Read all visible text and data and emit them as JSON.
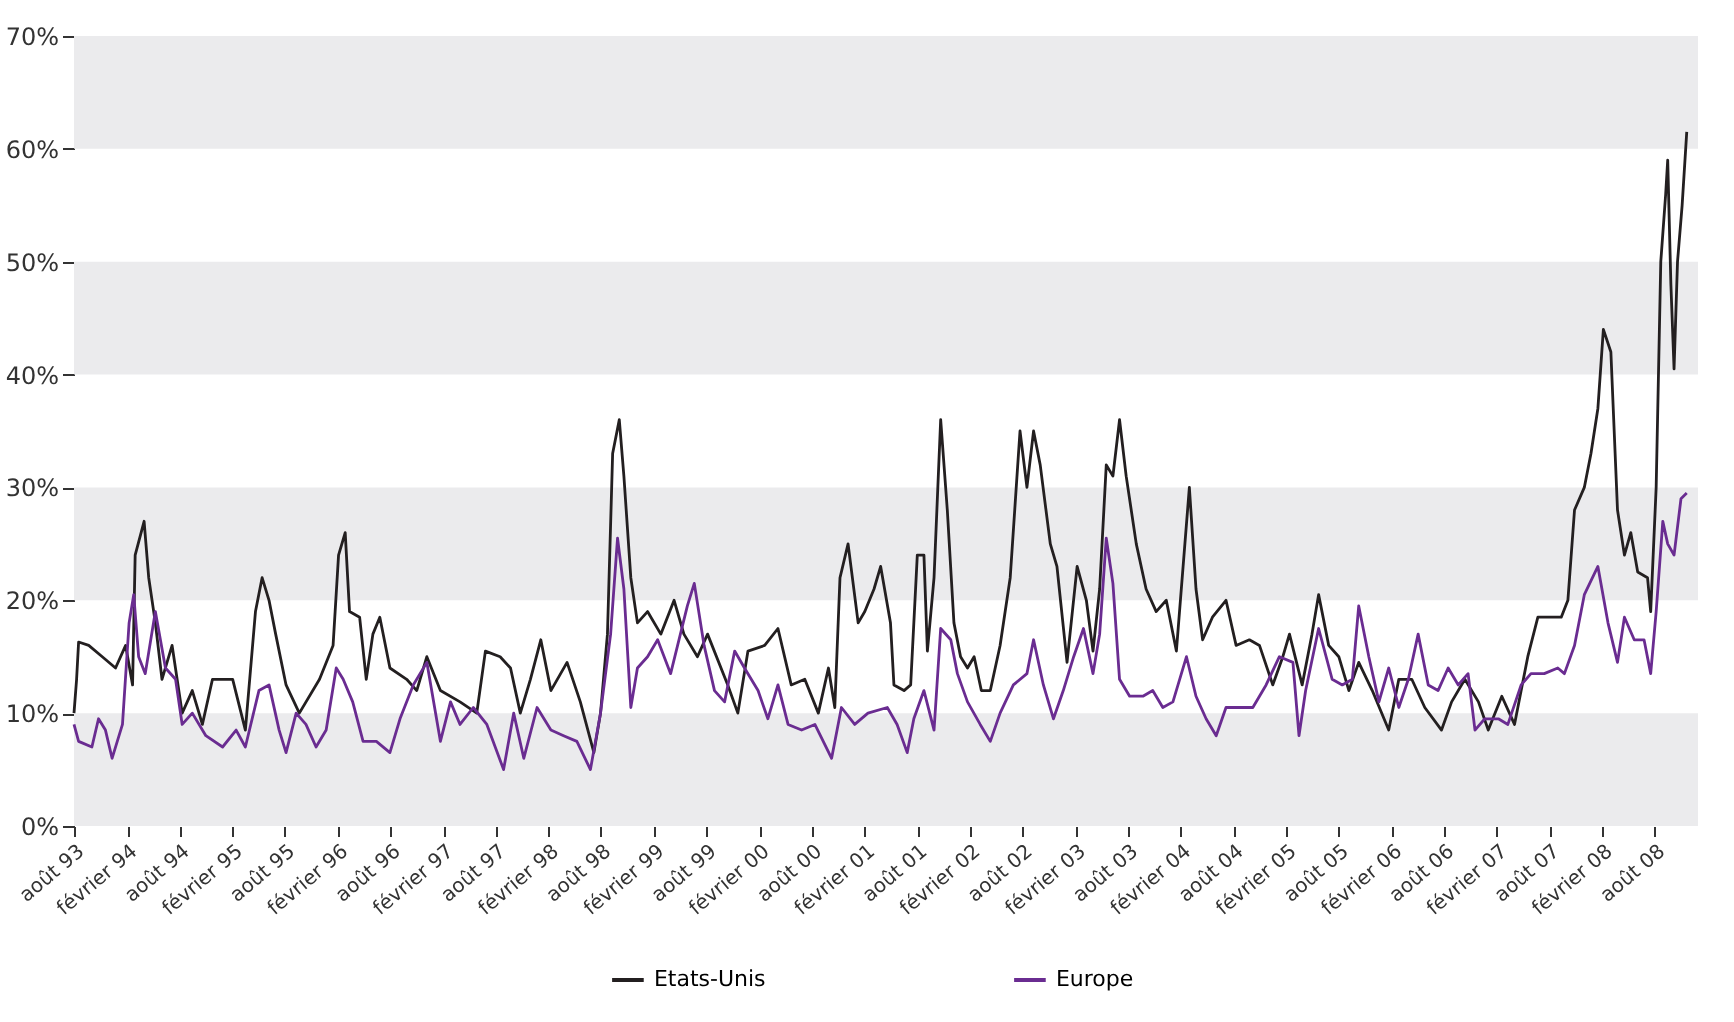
{
  "chart_data": {
    "type": "line",
    "xlim": [
      "1993-08-01",
      "2008-12-29"
    ],
    "xticks": [
      {
        "value": "1993-08-01",
        "label": "août 93"
      },
      {
        "value": "1994-02-01",
        "label": "février 94"
      },
      {
        "value": "1994-08-01",
        "label": "août 94"
      },
      {
        "value": "1995-02-01",
        "label": "février 95"
      },
      {
        "value": "1995-08-01",
        "label": "août 95"
      },
      {
        "value": "1996-02-01",
        "label": "février 96"
      },
      {
        "value": "1996-08-01",
        "label": "août 96"
      },
      {
        "value": "1997-02-01",
        "label": "février 97"
      },
      {
        "value": "1997-08-01",
        "label": "août 97"
      },
      {
        "value": "1998-02-01",
        "label": "février 98"
      },
      {
        "value": "1998-08-01",
        "label": "août 98"
      },
      {
        "value": "1999-02-01",
        "label": "février 99"
      },
      {
        "value": "1999-08-01",
        "label": "août 99"
      },
      {
        "value": "2000-02-01",
        "label": "février 00"
      },
      {
        "value": "2000-08-01",
        "label": "août 00"
      },
      {
        "value": "2001-02-01",
        "label": "février 01"
      },
      {
        "value": "2001-08-01",
        "label": "août 01"
      },
      {
        "value": "2002-02-01",
        "label": "février 02"
      },
      {
        "value": "2002-08-01",
        "label": "août 02"
      },
      {
        "value": "2003-02-01",
        "label": "février 03"
      },
      {
        "value": "2003-08-01",
        "label": "août 03"
      },
      {
        "value": "2004-02-01",
        "label": "février 04"
      },
      {
        "value": "2004-08-01",
        "label": "août 04"
      },
      {
        "value": "2005-02-01",
        "label": "février 05"
      },
      {
        "value": "2005-08-01",
        "label": "août 05"
      },
      {
        "value": "2006-02-01",
        "label": "février 06"
      },
      {
        "value": "2006-08-01",
        "label": "août 06"
      },
      {
        "value": "2007-02-01",
        "label": "février 07"
      },
      {
        "value": "2007-08-01",
        "label": "août 07"
      },
      {
        "value": "2008-02-01",
        "label": "février 08"
      },
      {
        "value": "2008-08-01",
        "label": "août 08"
      }
    ],
    "ylim": [
      0,
      70
    ],
    "yticks": [
      {
        "value": 0,
        "label": "0%"
      },
      {
        "value": 10,
        "label": "10%"
      },
      {
        "value": 20,
        "label": "20%"
      },
      {
        "value": 30,
        "label": "30%"
      },
      {
        "value": 40,
        "label": "40%"
      },
      {
        "value": 50,
        "label": "50%"
      },
      {
        "value": 60,
        "label": "60%"
      },
      {
        "value": 70,
        "label": "70%"
      }
    ],
    "bands": [
      {
        "axis": "y",
        "from": 0,
        "to": 10,
        "color": "#ebebed"
      },
      {
        "axis": "y",
        "from": 20,
        "to": 30,
        "color": "#ebebed"
      },
      {
        "axis": "y",
        "from": 40,
        "to": 50,
        "color": "#ebebed"
      },
      {
        "axis": "y",
        "from": 60,
        "to": 70,
        "color": "#ebebed"
      }
    ],
    "grid": false,
    "legend": "bottom",
    "marker": "none",
    "line_style": "solid",
    "series": [
      {
        "name": "Etats-Unis",
        "color": "#231f20",
        "x": [
          "1993-08-01",
          "1993-08-10",
          "1993-08-17",
          "1993-09-21",
          "1993-11-07",
          "1993-12-23",
          "1994-01-27",
          "1994-02-20",
          "1994-03-01",
          "1994-04-01",
          "1994-04-17",
          "1994-05-10",
          "1994-06-02",
          "1994-07-07",
          "1994-08-11",
          "1994-09-15",
          "1994-10-20",
          "1994-11-24",
          "1995-02-02",
          "1995-03-18",
          "1995-04-22",
          "1995-05-15",
          "1995-06-08",
          "1995-07-01",
          "1995-08-06",
          "1995-09-21",
          "1995-11-30",
          "1996-01-16",
          "1996-02-04",
          "1996-02-27",
          "1996-03-13",
          "1996-04-17",
          "1996-05-10",
          "1996-06-02",
          "1996-06-26",
          "1996-07-31",
          "1996-09-27",
          "1996-11-01",
          "1996-12-06",
          "1997-01-22",
          "1997-03-31",
          "1997-05-28",
          "1997-06-27",
          "1997-08-17",
          "1997-09-22",
          "1997-10-26",
          "1997-11-30",
          "1998-01-05",
          "1998-02-09",
          "1998-04-06",
          "1998-05-22",
          "1998-07-08",
          "1998-07-31",
          "1998-08-24",
          "1998-09-11",
          "1998-10-04",
          "1998-10-20",
          "1998-11-13",
          "1998-12-06",
          "1999-01-10",
          "1999-02-25",
          "1999-04-12",
          "1999-05-16",
          "1999-07-02",
          "1999-08-06",
          "1999-10-15",
          "1999-11-19",
          "1999-12-24",
          "2000-02-20",
          "2000-04-06",
          "2000-05-22",
          "2000-07-08",
          "2000-08-24",
          "2000-09-28",
          "2000-10-20",
          "2000-11-07",
          "2000-12-05",
          "2001-01-09",
          "2001-02-01",
          "2001-03-05",
          "2001-03-28",
          "2001-05-01",
          "2001-05-13",
          "2001-06-17",
          "2001-07-10",
          "2001-08-02",
          "2001-08-25",
          "2001-09-06",
          "2001-09-29",
          "2001-10-22",
          "2001-11-14",
          "2001-12-07",
          "2001-12-30",
          "2002-01-23",
          "2002-02-15",
          "2002-03-12",
          "2002-04-12",
          "2002-05-16",
          "2002-06-20",
          "2002-07-24",
          "2002-08-17",
          "2002-09-09",
          "2002-10-02",
          "2002-11-06",
          "2002-11-29",
          "2003-01-03",
          "2003-02-07",
          "2003-03-11",
          "2003-04-03",
          "2003-04-26",
          "2003-05-19",
          "2003-06-11",
          "2003-07-04",
          "2003-07-27",
          "2003-08-31",
          "2003-10-04",
          "2003-11-08",
          "2003-12-13",
          "2004-01-17",
          "2004-03-02",
          "2004-03-25",
          "2004-04-17",
          "2004-05-21",
          "2004-07-07",
          "2004-08-11",
          "2004-09-26",
          "2004-10-31",
          "2004-12-16",
          "2005-01-20",
          "2005-02-12",
          "2005-03-28",
          "2005-05-01",
          "2005-05-24",
          "2005-06-28",
          "2005-08-02",
          "2005-09-06",
          "2005-10-10",
          "2005-11-26",
          "2006-01-22",
          "2006-02-26",
          "2006-04-12",
          "2006-05-27",
          "2006-07-24",
          "2006-08-28",
          "2006-10-13",
          "2006-11-29",
          "2007-01-02",
          "2007-02-18",
          "2007-04-03",
          "2007-05-19",
          "2007-06-23",
          "2007-08-08",
          "2007-09-12",
          "2007-10-05",
          "2007-10-28",
          "2007-12-01",
          "2007-12-24",
          "2008-01-17",
          "2008-02-05",
          "2008-03-02",
          "2008-03-25",
          "2008-04-18",
          "2008-05-10",
          "2008-06-03",
          "2008-07-07",
          "2008-07-18",
          "2008-08-06",
          "2008-08-22",
          "2008-09-08",
          "2008-09-15",
          "2008-09-26",
          "2008-10-07",
          "2008-10-19",
          "2008-11-04",
          "2008-11-20"
        ],
        "values": [
          10,
          13,
          16.3,
          16,
          15,
          14,
          16,
          12.5,
          24,
          27,
          22,
          18,
          13,
          16,
          10,
          12,
          9,
          13,
          13,
          8.5,
          19,
          22,
          20,
          17,
          12.5,
          10,
          13,
          16,
          24,
          26,
          19,
          18.5,
          13,
          17,
          18.5,
          14,
          13,
          12,
          15,
          12,
          11,
          10,
          15.5,
          15,
          14,
          10,
          13,
          16.5,
          12,
          14.5,
          11,
          6.5,
          10,
          17,
          33,
          36,
          31,
          22,
          18,
          19,
          17,
          20,
          17,
          15,
          17,
          12.5,
          10,
          15.5,
          16,
          17.5,
          12.5,
          13,
          10,
          14,
          10.5,
          22,
          25,
          18,
          19,
          21,
          23,
          18,
          12.5,
          12,
          12.5,
          24,
          24,
          15.5,
          22,
          36,
          28,
          18,
          15,
          14,
          15,
          12,
          12,
          16,
          22,
          35,
          30,
          35,
          32,
          25,
          23,
          14.5,
          23,
          20,
          15.5,
          21,
          32,
          31,
          36,
          31,
          25,
          21,
          19,
          20,
          15.5,
          30,
          21,
          16.5,
          18.5,
          20,
          16,
          16.5,
          16,
          12.5,
          15,
          17,
          12.5,
          17,
          20.5,
          16,
          15,
          12,
          14.5,
          12,
          8.5,
          13,
          13,
          10.5,
          8.5,
          11,
          13,
          11,
          8.5,
          11.5,
          9,
          15,
          18.5,
          18.5,
          18.5,
          20,
          28,
          30,
          33,
          37,
          44,
          42,
          28,
          24,
          26,
          22.5,
          22,
          19,
          30,
          50,
          56,
          59,
          48,
          40.5,
          50,
          55,
          61.5
        ]
      },
      {
        "name": "Europe",
        "color": "#6a2c91",
        "x": [
          "1993-08-01",
          "1993-08-17",
          "1993-10-02",
          "1993-10-25",
          "1993-11-18",
          "1993-12-11",
          "1994-01-16",
          "1994-02-08",
          "1994-02-24",
          "1994-03-13",
          "1994-04-05",
          "1994-05-10",
          "1994-06-14",
          "1994-07-19",
          "1994-08-11",
          "1994-09-15",
          "1994-11-01",
          "1994-12-29",
          "1995-02-14",
          "1995-03-18",
          "1995-05-04",
          "1995-06-08",
          "1995-07-13",
          "1995-08-06",
          "1995-09-10",
          "1995-10-14",
          "1995-11-18",
          "1995-12-23",
          "1996-01-27",
          "1996-02-20",
          "1996-03-24",
          "1996-04-29",
          "1996-06-14",
          "1996-07-31",
          "1996-09-04",
          "1996-10-20",
          "1996-12-06",
          "1997-01-22",
          "1997-02-26",
          "1997-03-31",
          "1997-05-16",
          "1997-07-02",
          "1997-08-29",
          "1997-10-03",
          "1997-11-07",
          "1997-12-23",
          "1998-02-09",
          "1998-03-25",
          "1998-05-10",
          "1998-06-26",
          "1998-07-31",
          "1998-09-04",
          "1998-09-28",
          "1998-10-20",
          "1998-11-13",
          "1998-12-06",
          "1999-01-10",
          "1999-02-14",
          "1999-03-31",
          "1999-05-28",
          "1999-06-21",
          "1999-07-25",
          "1999-08-30",
          "1999-10-04",
          "1999-11-08",
          "1999-12-12",
          "2000-01-28",
          "2000-03-02",
          "2000-04-06",
          "2000-05-11",
          "2000-06-27",
          "2000-08-12",
          "2000-10-09",
          "2000-11-12",
          "2000-12-28",
          "2001-02-12",
          "2001-04-20",
          "2001-05-24",
          "2001-06-28",
          "2001-07-21",
          "2001-08-25",
          "2001-09-29",
          "2001-10-22",
          "2001-11-26",
          "2001-12-19",
          "2002-01-23",
          "2002-03-08",
          "2002-04-12",
          "2002-05-16",
          "2002-07-01",
          "2002-08-17",
          "2002-09-09",
          "2002-10-13",
          "2002-11-17",
          "2002-12-21",
          "2003-01-26",
          "2003-03-01",
          "2003-04-03",
          "2003-04-26",
          "2003-05-19",
          "2003-06-11",
          "2003-07-04",
          "2003-08-08",
          "2003-09-23",
          "2003-10-27",
          "2003-12-01",
          "2004-01-05",
          "2004-02-21",
          "2004-03-25",
          "2004-04-29",
          "2004-06-03",
          "2004-07-07",
          "2004-08-22",
          "2004-10-08",
          "2004-11-23",
          "2005-01-08",
          "2005-02-24",
          "2005-03-17",
          "2005-04-09",
          "2005-05-24",
          "2005-07-10",
          "2005-08-14",
          "2005-09-18",
          "2005-10-10",
          "2005-11-14",
          "2005-12-19",
          "2006-01-22",
          "2006-02-26",
          "2006-03-31",
          "2006-05-04",
          "2006-06-08",
          "2006-07-12",
          "2006-08-16",
          "2006-09-20",
          "2006-10-24",
          "2006-11-17",
          "2006-12-21",
          "2007-02-06",
          "2007-03-11",
          "2007-04-26",
          "2007-05-30",
          "2007-07-15",
          "2007-08-31",
          "2007-09-23",
          "2007-10-28",
          "2007-12-01",
          "2008-01-17",
          "2008-02-21",
          "2008-03-25",
          "2008-04-18",
          "2008-05-22",
          "2008-06-25",
          "2008-07-18",
          "2008-08-06",
          "2008-08-29",
          "2008-09-15",
          "2008-10-07",
          "2008-10-31",
          "2008-11-20"
        ],
        "values": [
          9,
          7.5,
          7,
          9.5,
          8.5,
          6,
          9,
          18,
          20.5,
          15,
          13.5,
          19,
          14,
          13,
          9,
          10,
          8,
          7,
          8.5,
          7,
          12,
          12.5,
          8.5,
          6.5,
          10,
          9,
          7,
          8.5,
          14,
          13,
          11,
          7.5,
          7.5,
          6.5,
          9.5,
          12.5,
          14.5,
          7.5,
          11,
          9,
          10.5,
          9,
          5,
          10,
          6,
          10.5,
          8.5,
          8,
          7.5,
          5,
          10,
          17,
          25.5,
          21,
          10.5,
          14,
          15,
          16.5,
          13.5,
          19.5,
          21.5,
          16,
          12,
          11,
          15.5,
          14,
          12,
          9.5,
          12.5,
          9,
          8.5,
          9,
          6,
          10.5,
          9,
          10,
          10.5,
          9,
          6.5,
          9.5,
          12,
          8.5,
          17.5,
          16.5,
          13.5,
          11,
          9,
          7.5,
          10,
          12.5,
          13.5,
          16.5,
          12.5,
          9.5,
          12,
          15,
          17.5,
          13.5,
          17,
          25.5,
          21.5,
          13,
          11.5,
          11.5,
          12,
          10.5,
          11,
          15,
          11.5,
          9.5,
          8,
          10.5,
          10.5,
          10.5,
          12.5,
          15,
          14.5,
          8,
          12,
          17.5,
          13,
          12.5,
          13,
          19.5,
          15,
          11,
          14,
          10.5,
          13,
          17,
          12.5,
          12,
          14,
          12.5,
          13.5,
          8.5,
          9.5,
          9.5,
          9,
          12.5,
          13.5,
          13.5,
          14,
          13.5,
          16,
          20.5,
          23,
          18,
          14.5,
          18.5,
          16.5,
          16.5,
          13.5,
          19,
          27,
          25,
          24,
          29,
          29.5
        ]
      }
    ]
  }
}
